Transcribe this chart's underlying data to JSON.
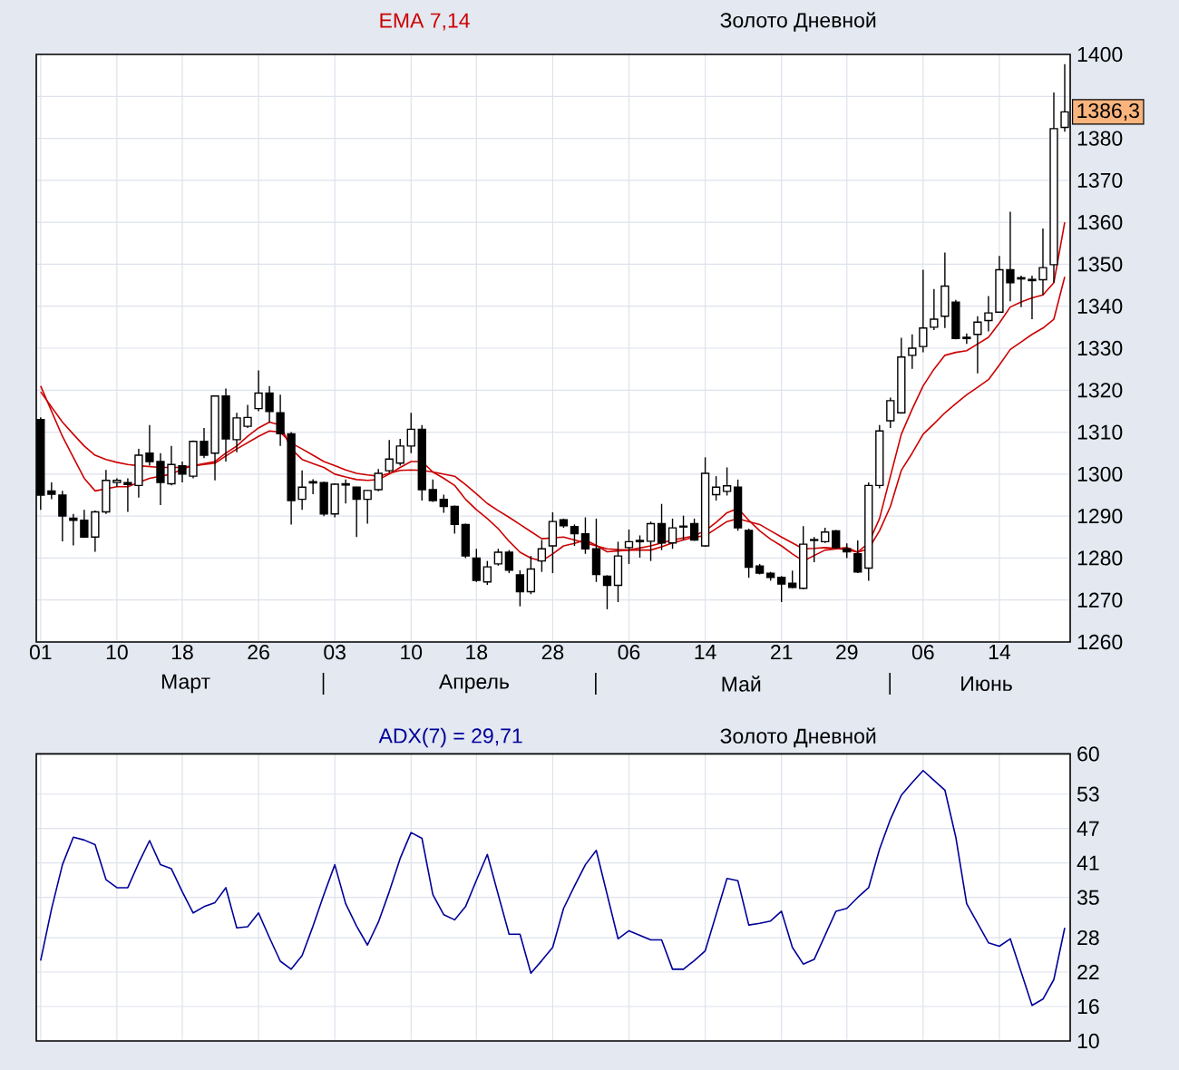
{
  "chart_data": [
    {
      "type": "candlestick",
      "title": "Золото Дневной",
      "subtitle": "EMA 7,14",
      "categories": [
        "01",
        null,
        null,
        null,
        null,
        null,
        null,
        "10",
        null,
        null,
        null,
        null,
        null,
        "18",
        null,
        null,
        null,
        null,
        null,
        null,
        "26",
        null,
        null,
        null,
        null,
        null,
        null,
        "03",
        null,
        null,
        null,
        null,
        null,
        null,
        "10",
        null,
        null,
        null,
        null,
        null,
        "18",
        null,
        null,
        null,
        null,
        null,
        null,
        "28",
        null,
        null,
        null,
        null,
        null,
        null,
        "06",
        null,
        null,
        null,
        null,
        null,
        null,
        "14",
        null,
        null,
        null,
        null,
        null,
        null,
        "21",
        null,
        null,
        null,
        null,
        null,
        "29",
        null,
        null,
        null,
        null,
        null,
        null,
        "06",
        null,
        null,
        null,
        null,
        null,
        null,
        "14",
        null,
        null,
        null,
        null,
        null,
        null
      ],
      "ohlc": [
        [
          1313,
          1313.5,
          1291.5,
          1295
        ],
        [
          1296,
          1298,
          1294,
          1295.2
        ],
        [
          1295,
          1296,
          1284,
          1290
        ],
        [
          1289.5,
          1290.5,
          1283,
          1289
        ],
        [
          1289,
          1291.5,
          1284.8,
          1285
        ],
        [
          1285,
          1291.3,
          1281.5,
          1291
        ],
        [
          1291,
          1301,
          1290.5,
          1298.5
        ],
        [
          1298,
          1299,
          1297,
          1298.5
        ],
        [
          1298,
          1299,
          1291,
          1297.5
        ],
        [
          1297.3,
          1306,
          1294.4,
          1304.5
        ],
        [
          1305,
          1311.7,
          1302,
          1303
        ],
        [
          1303,
          1305,
          1292.6,
          1298
        ],
        [
          1297.7,
          1306.7,
          1297.3,
          1302.3
        ],
        [
          1302,
          1303,
          1298,
          1300
        ],
        [
          1299.5,
          1308,
          1299,
          1307.8
        ],
        [
          1307.8,
          1311,
          1303.8,
          1304.5
        ],
        [
          1305,
          1318.6,
          1298.5,
          1318.6
        ],
        [
          1318.6,
          1320.4,
          1303,
          1308.4
        ],
        [
          1308.2,
          1314.6,
          1305.2,
          1313.4
        ],
        [
          1311.4,
          1316.5,
          1311,
          1313.5
        ],
        [
          1315.6,
          1324.7,
          1315,
          1319.3
        ],
        [
          1319.3,
          1321,
          1312.4,
          1314.9
        ],
        [
          1314.6,
          1318.9,
          1306.7,
          1309.6
        ],
        [
          1309.6,
          1310,
          1288,
          1293.7
        ],
        [
          1294,
          1300.9,
          1291.5,
          1296.9
        ],
        [
          1297.9,
          1298.8,
          1295.2,
          1298.2
        ],
        [
          1298,
          1298.2,
          1290,
          1290.5
        ],
        [
          1290.5,
          1297.8,
          1289.7,
          1297.6
        ],
        [
          1297.4,
          1298.7,
          1293,
          1297.7
        ],
        [
          1296.9,
          1297,
          1285,
          1294
        ],
        [
          1294,
          1296.2,
          1288.2,
          1296.1
        ],
        [
          1296.3,
          1301.2,
          1295.9,
          1300.2
        ],
        [
          1300.8,
          1308.1,
          1300.3,
          1303.6
        ],
        [
          1302.6,
          1308.4,
          1302,
          1306.7
        ],
        [
          1306.7,
          1314.6,
          1305,
          1310.7
        ],
        [
          1310.7,
          1311.7,
          1293.7,
          1296.3
        ],
        [
          1296.3,
          1298.7,
          1293.4,
          1293.7
        ],
        [
          1294,
          1295.1,
          1290.8,
          1292.3
        ],
        [
          1292.3,
          1292.5,
          1285.8,
          1288
        ],
        [
          1288,
          1288.2,
          1280,
          1280.5
        ],
        [
          1280,
          1282.2,
          1274.3,
          1274.7
        ],
        [
          1274.3,
          1279.3,
          1273.6,
          1277.9
        ],
        [
          1278.6,
          1282.2,
          1278.2,
          1281.4
        ],
        [
          1281.4,
          1281.9,
          1276.4,
          1277.1
        ],
        [
          1276,
          1277.1,
          1268.5,
          1272
        ],
        [
          1272,
          1280.5,
          1271.4,
          1277.4
        ],
        [
          1279.3,
          1284.3,
          1276.7,
          1282.2
        ],
        [
          1282.9,
          1290.9,
          1276.4,
          1288.7
        ],
        [
          1289.1,
          1289.4,
          1287.2,
          1287.7
        ],
        [
          1287.5,
          1288,
          1282.9,
          1285.8
        ],
        [
          1285.8,
          1289.7,
          1281,
          1282.2
        ],
        [
          1282.2,
          1289.4,
          1274.3,
          1276.1
        ],
        [
          1275.7,
          1275.9,
          1267.8,
          1273.5
        ],
        [
          1273.5,
          1283.9,
          1269.5,
          1280.5
        ],
        [
          1282.5,
          1286.8,
          1278.6,
          1283.9
        ],
        [
          1283.9,
          1285.4,
          1280.1,
          1284.2
        ],
        [
          1284,
          1288.7,
          1279.3,
          1288.2
        ],
        [
          1288.2,
          1292.9,
          1281.9,
          1283.6
        ],
        [
          1283.6,
          1289.4,
          1282.2,
          1287.2
        ],
        [
          1287.4,
          1290.1,
          1284.3,
          1287.6
        ],
        [
          1288.2,
          1289.4,
          1284.1,
          1284.3
        ],
        [
          1282.9,
          1304,
          1282.7,
          1300.2
        ],
        [
          1295.1,
          1299.5,
          1293.7,
          1296.9
        ],
        [
          1295.9,
          1301.6,
          1294.9,
          1297.2
        ],
        [
          1296.9,
          1298.7,
          1286.5,
          1287.2
        ],
        [
          1286.6,
          1287,
          1275.3,
          1277.8
        ],
        [
          1278.1,
          1278.6,
          1276.1,
          1276.4
        ],
        [
          1276.4,
          1276.7,
          1274.6,
          1275.4
        ],
        [
          1275.4,
          1275.7,
          1269.5,
          1273.8
        ],
        [
          1274,
          1277,
          1272.8,
          1273
        ],
        [
          1272.8,
          1287.6,
          1272.6,
          1283.3
        ],
        [
          1284.2,
          1285,
          1279,
          1284.4
        ],
        [
          1283.9,
          1287.2,
          1283.6,
          1286.2
        ],
        [
          1286.5,
          1286.7,
          1282.2,
          1282.5
        ],
        [
          1282.2,
          1283.5,
          1280,
          1281.5
        ],
        [
          1281,
          1284.2,
          1276.4,
          1276.7
        ],
        [
          1277.6,
          1298,
          1274.6,
          1297.3
        ],
        [
          1297.3,
          1311.7,
          1296.6,
          1310.3
        ],
        [
          1312.7,
          1318.2,
          1311,
          1317.5
        ],
        [
          1314.6,
          1332.5,
          1314.4,
          1327.9
        ],
        [
          1328.3,
          1333.3,
          1325.1,
          1330
        ],
        [
          1330.4,
          1348.7,
          1329,
          1334.8
        ],
        [
          1335,
          1344.1,
          1334.3,
          1336.9
        ],
        [
          1337.6,
          1352.8,
          1334.8,
          1344.8
        ],
        [
          1341,
          1341.5,
          1332.1,
          1332.3
        ],
        [
          1332.6,
          1333.5,
          1331,
          1332.3
        ],
        [
          1333.3,
          1337.6,
          1324,
          1336.2
        ],
        [
          1336.6,
          1342.4,
          1334,
          1338.4
        ],
        [
          1338.6,
          1352,
          1338.4,
          1348.7
        ],
        [
          1348.7,
          1362.5,
          1341.2,
          1345.6
        ],
        [
          1346.8,
          1347.3,
          1339.8,
          1346.5
        ],
        [
          1346.1,
          1347.3,
          1336.9,
          1346.4
        ],
        [
          1346.3,
          1358.5,
          1342.7,
          1349.2
        ],
        [
          1349.9,
          1390.9,
          1345.6,
          1382.3
        ],
        [
          1382.6,
          1397.7,
          1381.6,
          1386.3
        ]
      ],
      "series": [
        {
          "type": "line",
          "color": "#cc0000",
          "values": [
            1321,
            1315,
            1309,
            1304,
            1299,
            1296,
            1296.5,
            1297,
            1297,
            1298,
            1299,
            1299.5,
            1300,
            1301.2,
            1302,
            1302.5,
            1303,
            1305,
            1306.7,
            1309,
            1311,
            1312.4,
            1311.7,
            1306,
            1303.5,
            1302.5,
            1301.6,
            1300,
            1299.3,
            1298.7,
            1298.5,
            1298.7,
            1300,
            1301.6,
            1303,
            1303,
            1300.5,
            1299,
            1297.3,
            1294,
            1291.5,
            1289.4,
            1287,
            1284,
            1281.4,
            1280,
            1279.3,
            1281,
            1282.9,
            1283.5,
            1284.3,
            1283,
            1281.5,
            1281.7,
            1281.9,
            1282.4,
            1282.9,
            1283.6,
            1284.3,
            1284.8,
            1285.3,
            1286.5,
            1288.5,
            1290.8,
            1291.8,
            1289,
            1286.5,
            1284.5,
            1282.9,
            1281,
            1279.3,
            1280.6,
            1281.9,
            1282.2,
            1282.5,
            1281.4,
            1283.6,
            1289.4,
            1299.5,
            1309.5,
            1315.5,
            1321,
            1325,
            1328.3,
            1329,
            1329.4,
            1331,
            1332.6,
            1336,
            1339.8,
            1341,
            1342,
            1342.7,
            1345.6,
            1360
          ]
        },
        {
          "type": "line",
          "color": "#cc0000",
          "values": [
            1319.6,
            1316,
            1312.4,
            1309.5,
            1306.7,
            1304.5,
            1303.5,
            1302.8,
            1302.3,
            1302,
            1301.8,
            1301.6,
            1301.6,
            1301.6,
            1302,
            1302.3,
            1302.6,
            1304.3,
            1306,
            1307.5,
            1309,
            1310.3,
            1310,
            1307.4,
            1306,
            1304.5,
            1303,
            1302,
            1301,
            1300.2,
            1299.8,
            1299.5,
            1300.2,
            1300.9,
            1301,
            1300.9,
            1300.5,
            1300,
            1299.5,
            1297.5,
            1295.3,
            1293,
            1291.3,
            1289.7,
            1288,
            1286.3,
            1284.6,
            1284.8,
            1285,
            1284.3,
            1283.6,
            1282.9,
            1282.2,
            1282,
            1281.9,
            1281.9,
            1281.9,
            1282.7,
            1283.6,
            1284.3,
            1285,
            1285.3,
            1287,
            1288.7,
            1289.4,
            1288.7,
            1288,
            1286.5,
            1285,
            1283.6,
            1282.2,
            1282.3,
            1282.5,
            1282.3,
            1282,
            1281.4,
            1282.2,
            1286.5,
            1292.3,
            1300.9,
            1305,
            1309.5,
            1312,
            1314.6,
            1316.8,
            1318.9,
            1320.7,
            1322.5,
            1326,
            1329.7,
            1331.5,
            1333.3,
            1334.8,
            1336.9,
            1347
          ]
        }
      ],
      "ylim": [
        1260,
        1400
      ],
      "yticks": [
        1260,
        1270,
        1280,
        1290,
        1300,
        1310,
        1320,
        1330,
        1340,
        1350,
        1360,
        1370,
        1380,
        {
          "value": 1390,
          "label": null
        },
        1400
      ],
      "grid": true,
      "annotations": [
        "Март",
        "Апрель",
        "Май",
        "Июнь",
        {
          "text": "1386,3",
          "y": 1386.3
        }
      ]
    },
    {
      "type": "line",
      "title": "Золото Дневной",
      "subtitle": "ADX(7) = 29,71",
      "categories": [
        "01",
        null,
        null,
        null,
        null,
        null,
        null,
        "10",
        null,
        null,
        null,
        null,
        null,
        "18",
        null,
        null,
        null,
        null,
        null,
        null,
        "26",
        null,
        null,
        null,
        null,
        null,
        null,
        "03",
        null,
        null,
        null,
        null,
        null,
        null,
        "10",
        null,
        null,
        null,
        null,
        null,
        "18",
        null,
        null,
        null,
        null,
        null,
        null,
        "28",
        null,
        null,
        null,
        null,
        null,
        null,
        "06",
        null,
        null,
        null,
        null,
        null,
        null,
        "14",
        null,
        null,
        null,
        null,
        null,
        null,
        "21",
        null,
        null,
        null,
        null,
        null,
        "29",
        null,
        null,
        null,
        null,
        null,
        null,
        "06",
        null,
        null,
        null,
        null,
        null,
        null,
        "14",
        null,
        null,
        null,
        null,
        null,
        null
      ],
      "series": [
        {
          "color": "#000099",
          "values": [
            24,
            33,
            40.7,
            45.5,
            45,
            44.2,
            38.1,
            36.7,
            36.7,
            41,
            44.9,
            40.7,
            40,
            36,
            32.3,
            33.4,
            34.1,
            36.7,
            29.7,
            29.9,
            32.3,
            28,
            23.9,
            22.5,
            24.9,
            30,
            35.5,
            40.7,
            33.9,
            30,
            26.7,
            30.7,
            36,
            41.8,
            46.3,
            45.3,
            35.5,
            32,
            31.1,
            33.4,
            38,
            42.5,
            35.5,
            28.6,
            28.6,
            21.8,
            24,
            26.3,
            33.1,
            37,
            40.7,
            43.2,
            35.5,
            27.8,
            29.2,
            28.4,
            27.6,
            27.6,
            22.5,
            22.5,
            24,
            25.7,
            32,
            38.3,
            37.9,
            30.2,
            30.5,
            30.9,
            32.6,
            26.3,
            23.4,
            24.2,
            28.4,
            32.6,
            33.1,
            35,
            36.7,
            43.4,
            48.6,
            52.8,
            55,
            57.1,
            55.4,
            53.7,
            45.5,
            33.9,
            30.5,
            27.1,
            26.5,
            27.8,
            22,
            16.2,
            17.3,
            20.7,
            29.7
          ]
        }
      ],
      "ylim": [
        10,
        60
      ],
      "yticks": [
        10,
        16,
        22,
        28,
        35,
        41,
        47,
        53,
        60
      ],
      "grid": true,
      "tick_labels": "y"
    }
  ]
}
